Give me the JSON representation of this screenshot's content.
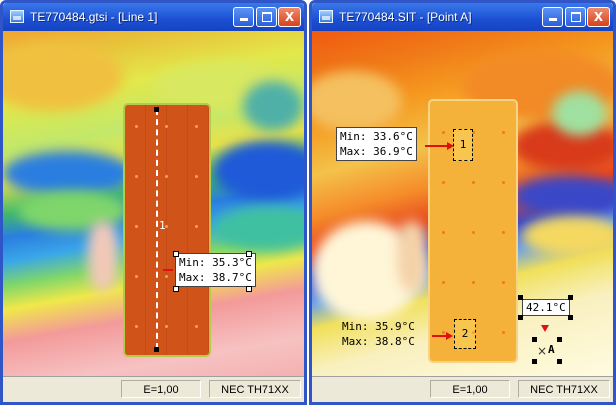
{
  "windows": [
    {
      "title": "TE770484.gtsi - [Line 1]",
      "tool_label": "1",
      "readout": {
        "min": "Min: 35.3°C",
        "max": "Max: 38.7°C"
      },
      "status": {
        "emissivity": "E=1,00",
        "camera": "NEC TH71XX"
      }
    },
    {
      "title": "TE770484.SIT - [Point A]",
      "area1": {
        "label": "1",
        "min": "Min: 33.6°C",
        "max": "Max: 36.9°C"
      },
      "area2": {
        "label": "2",
        "min": "Min: 35.9°C",
        "max": "Max: 38.8°C"
      },
      "pointA": {
        "label": "A",
        "value": "42.1°C"
      },
      "status": {
        "emissivity": "E=1,00",
        "camera": "NEC TH71XX"
      }
    }
  ],
  "icons": {
    "app": "thermal-image-icon",
    "minimize": "minimize-icon",
    "maximize": "maximize-icon",
    "close": "close-icon"
  },
  "colors": {
    "titlebar": "#1b4fd3",
    "close_button": "#d4431c",
    "marker_arrow": "#e01010"
  }
}
